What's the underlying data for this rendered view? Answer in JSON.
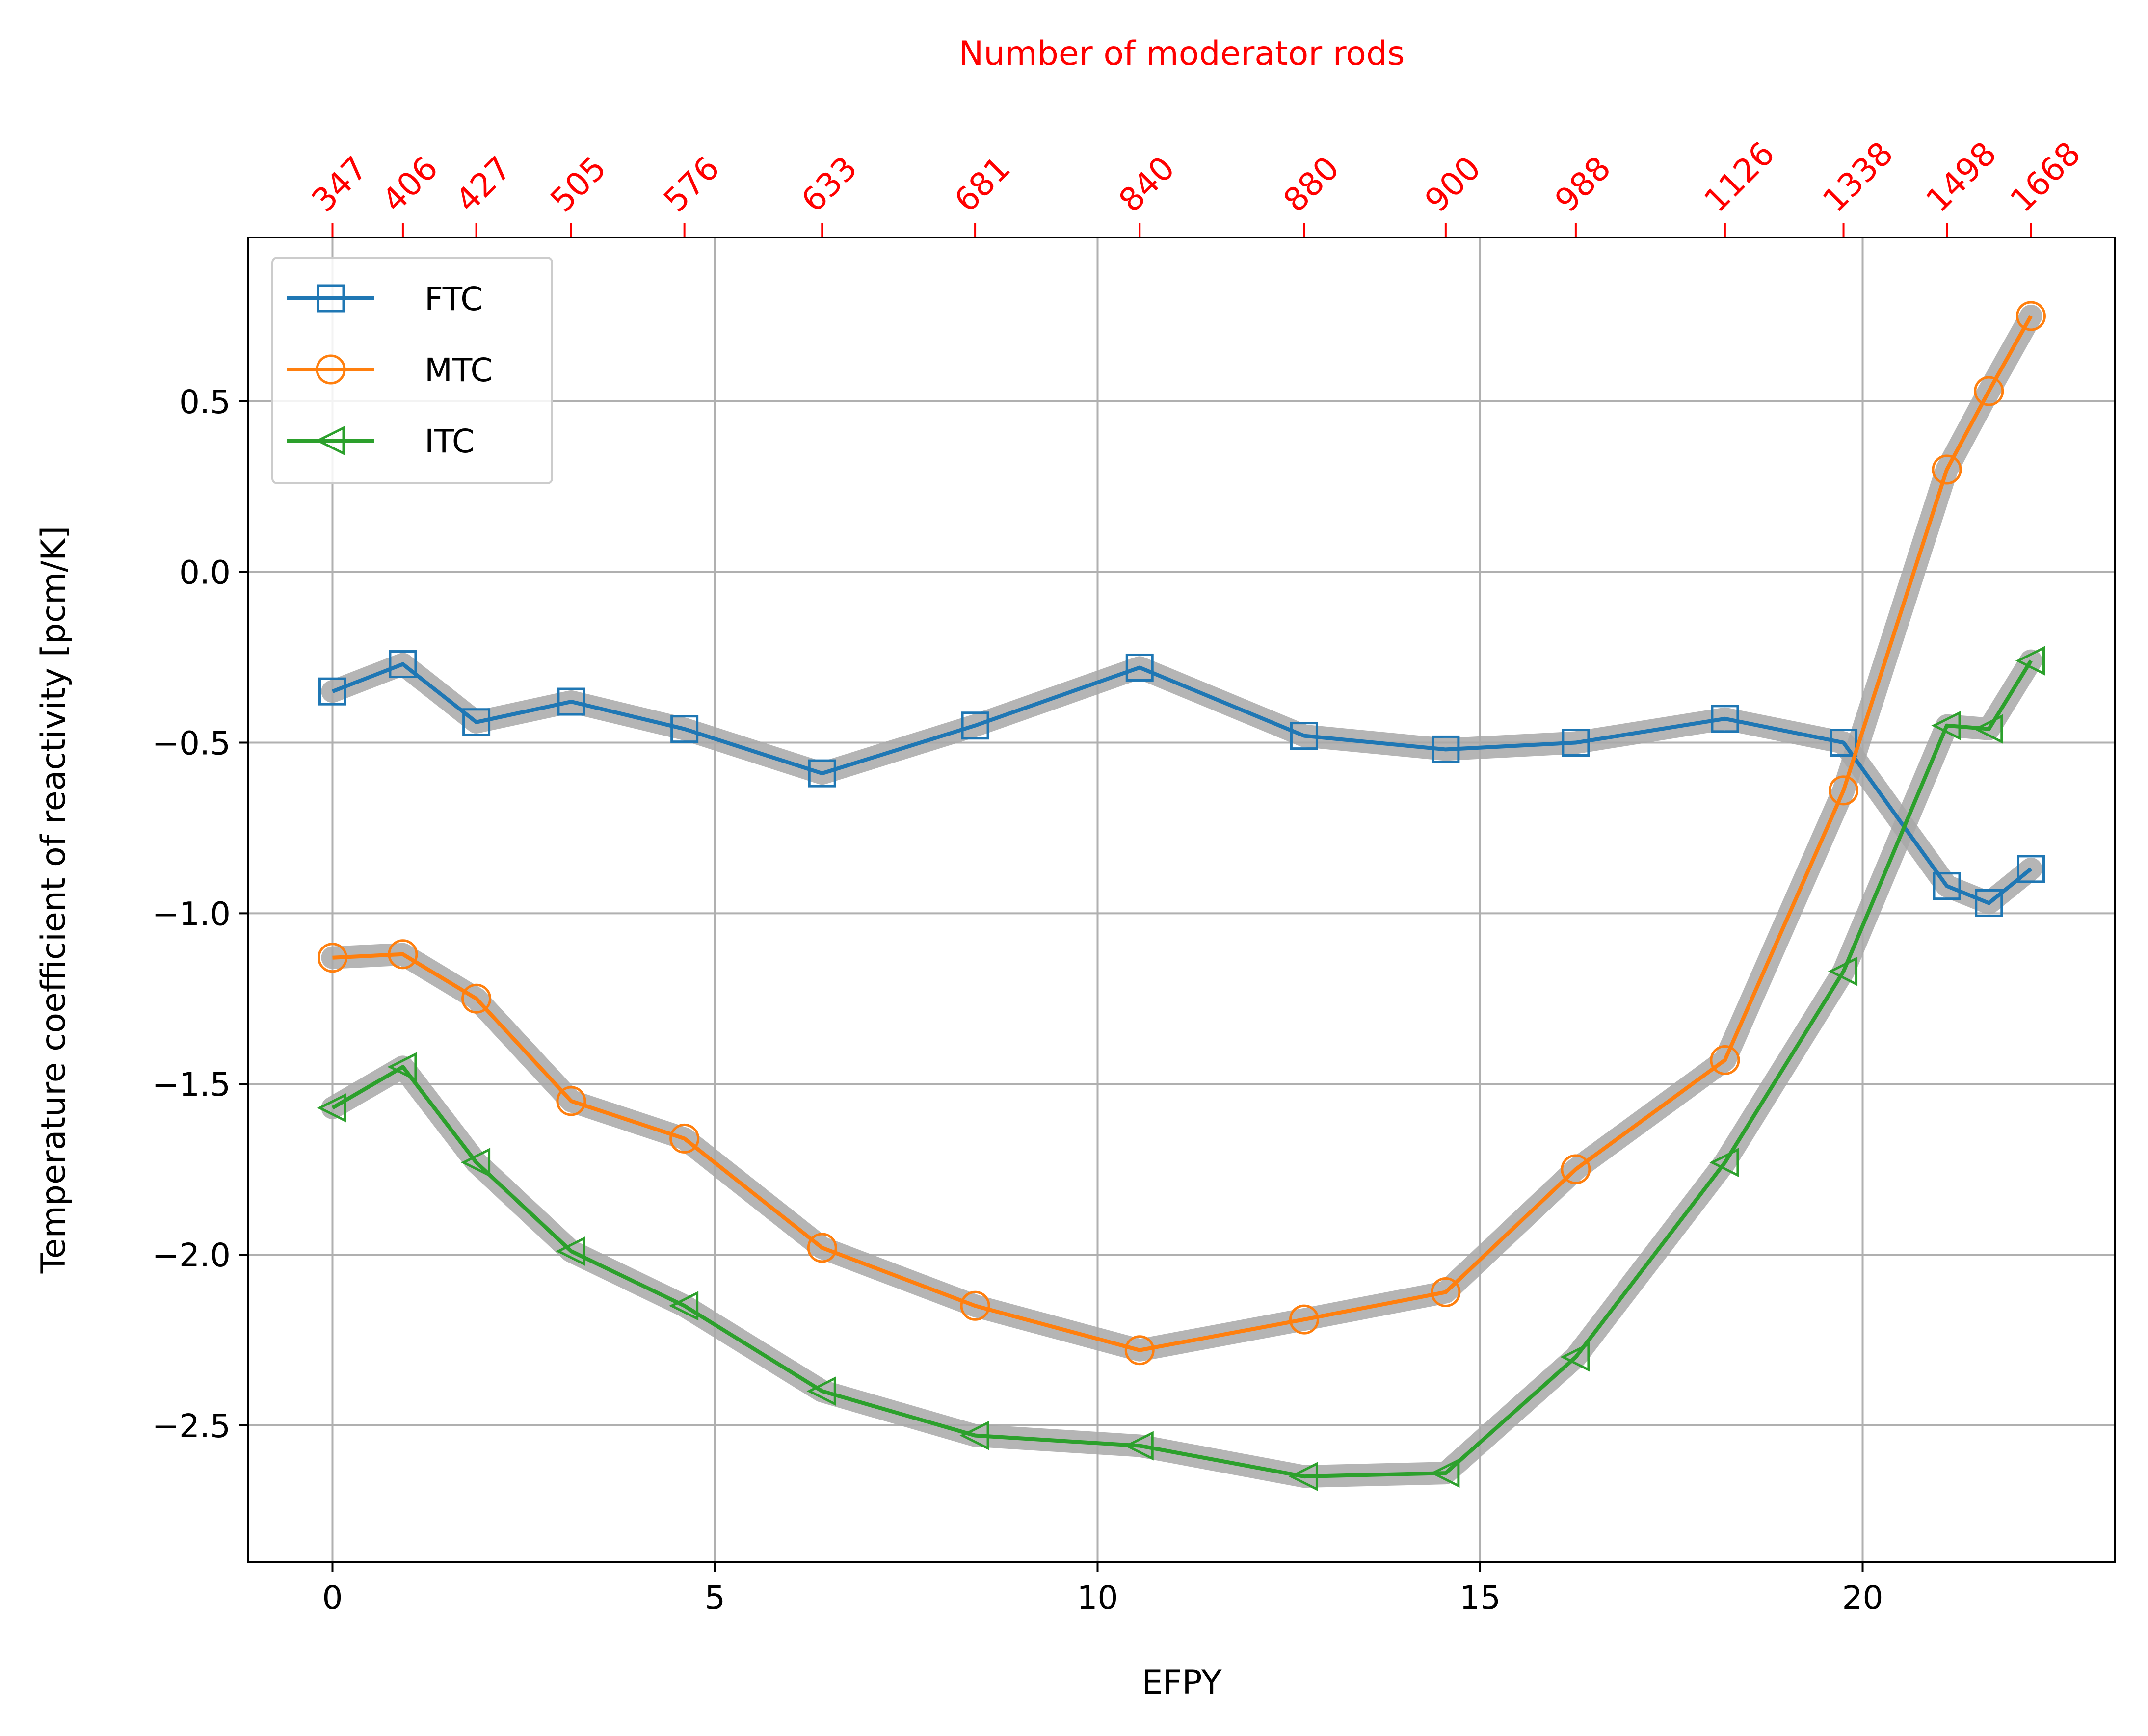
{
  "chart_data": {
    "type": "line",
    "xlabel": "EFPY",
    "ylabel": "Temperature coefficient of reactivity [pcm/K]",
    "top_axis_label": "Number of moderator rods",
    "xlim": [
      -1.1,
      23.3
    ],
    "ylim": [
      -2.9,
      0.98
    ],
    "x_ticks": [
      0,
      5,
      10,
      15,
      20
    ],
    "y_ticks": [
      0.5,
      0.0,
      -0.5,
      -1.0,
      -1.5,
      -2.0,
      -2.5
    ],
    "y_tick_labels": [
      "0.5",
      "0.0",
      "−0.5",
      "−1.0",
      "−1.5",
      "−2.0",
      "−2.5"
    ],
    "grid": true,
    "legend_position": "upper-left",
    "x": [
      0,
      0.92,
      1.88,
      3.12,
      4.6,
      6.4,
      8.4,
      10.55,
      12.7,
      14.55,
      16.25,
      18.2,
      19.75,
      21.1,
      21.65,
      22.2
    ],
    "top_tick_labels": [
      "347",
      "406",
      "427",
      "505",
      "576",
      "633",
      "681",
      "840",
      "880",
      "900",
      "988",
      "1126",
      "1338",
      "1498",
      "1668"
    ],
    "top_tick_x": [
      0,
      0.92,
      1.88,
      3.12,
      4.6,
      6.4,
      8.4,
      10.55,
      12.7,
      14.55,
      16.25,
      18.2,
      19.75,
      21.1,
      22.2
    ],
    "series": [
      {
        "name": "FTC",
        "color": "#1f77b4",
        "marker": "square",
        "values": [
          -0.35,
          -0.27,
          -0.44,
          -0.38,
          -0.46,
          -0.59,
          -0.45,
          -0.28,
          -0.48,
          -0.52,
          -0.5,
          -0.43,
          -0.5,
          -0.92,
          -0.97,
          -0.87
        ]
      },
      {
        "name": "MTC",
        "color": "#ff7f0e",
        "marker": "circle",
        "values": [
          -1.13,
          -1.12,
          -1.25,
          -1.55,
          -1.66,
          -1.98,
          -2.15,
          -2.28,
          -2.19,
          -2.11,
          -1.75,
          -1.43,
          -0.64,
          0.3,
          0.53,
          0.75
        ]
      },
      {
        "name": "ITC",
        "color": "#2ca02c",
        "marker": "triangle-left",
        "values": [
          -1.57,
          -1.45,
          -1.73,
          -1.99,
          -2.15,
          -2.4,
          -2.53,
          -2.56,
          -2.65,
          -2.64,
          -2.3,
          -1.73,
          -1.17,
          -0.45,
          -0.46,
          -0.26
        ]
      }
    ]
  }
}
